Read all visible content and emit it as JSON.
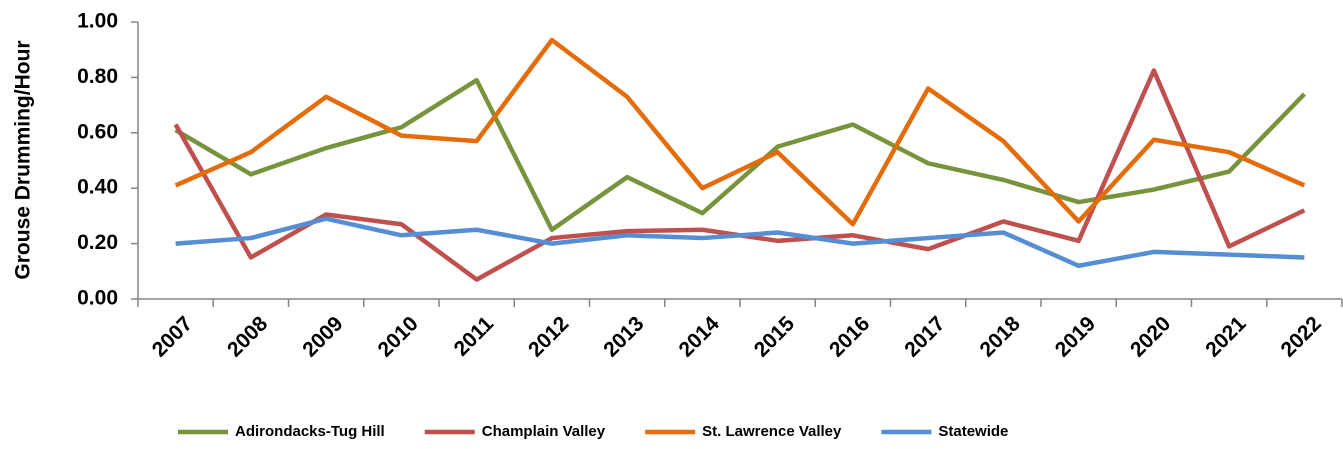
{
  "chart_data": {
    "type": "line",
    "y_label": "Grouse Drumming/Hour",
    "categories": [
      "2007",
      "2008",
      "2009",
      "2010",
      "2011",
      "2012",
      "2013",
      "2014",
      "2015",
      "2016",
      "2017",
      "2018",
      "2019",
      "2020",
      "2021",
      "2022"
    ],
    "series": [
      {
        "name": "Adirondacks-Tug Hill",
        "color": "#77933c",
        "values": [
          0.61,
          0.45,
          0.545,
          0.62,
          0.79,
          0.25,
          0.44,
          0.31,
          0.55,
          0.63,
          0.49,
          0.43,
          0.35,
          0.395,
          0.46,
          0.74
        ]
      },
      {
        "name": "Champlain Valley",
        "color": "#c0504d",
        "values": [
          0.63,
          0.15,
          0.305,
          0.27,
          0.07,
          0.22,
          0.245,
          0.25,
          0.21,
          0.23,
          0.18,
          0.28,
          0.21,
          0.825,
          0.19,
          0.32
        ]
      },
      {
        "name": "St. Lawrence Valley",
        "color": "#e46c0a",
        "values": [
          0.41,
          0.53,
          0.73,
          0.59,
          0.57,
          0.935,
          0.73,
          0.4,
          0.53,
          0.27,
          0.76,
          0.57,
          0.28,
          0.575,
          0.53,
          0.41
        ]
      },
      {
        "name": "Statewide",
        "color": "#558ed5",
        "values": [
          0.2,
          0.22,
          0.29,
          0.23,
          0.25,
          0.2,
          0.23,
          0.22,
          0.24,
          0.2,
          0.22,
          0.24,
          0.12,
          0.17,
          0.16,
          0.15
        ]
      }
    ],
    "ylim": [
      0,
      1
    ],
    "yticks": [
      {
        "value": 0,
        "label": "0.00"
      },
      {
        "value": 0.2,
        "label": "0.20"
      },
      {
        "value": 0.4,
        "label": "0.40"
      },
      {
        "value": 0.6,
        "label": "0.60"
      },
      {
        "value": 0.8,
        "label": "0.80"
      },
      {
        "value": 1,
        "label": "1.00"
      }
    ],
    "legend": "bottom"
  }
}
